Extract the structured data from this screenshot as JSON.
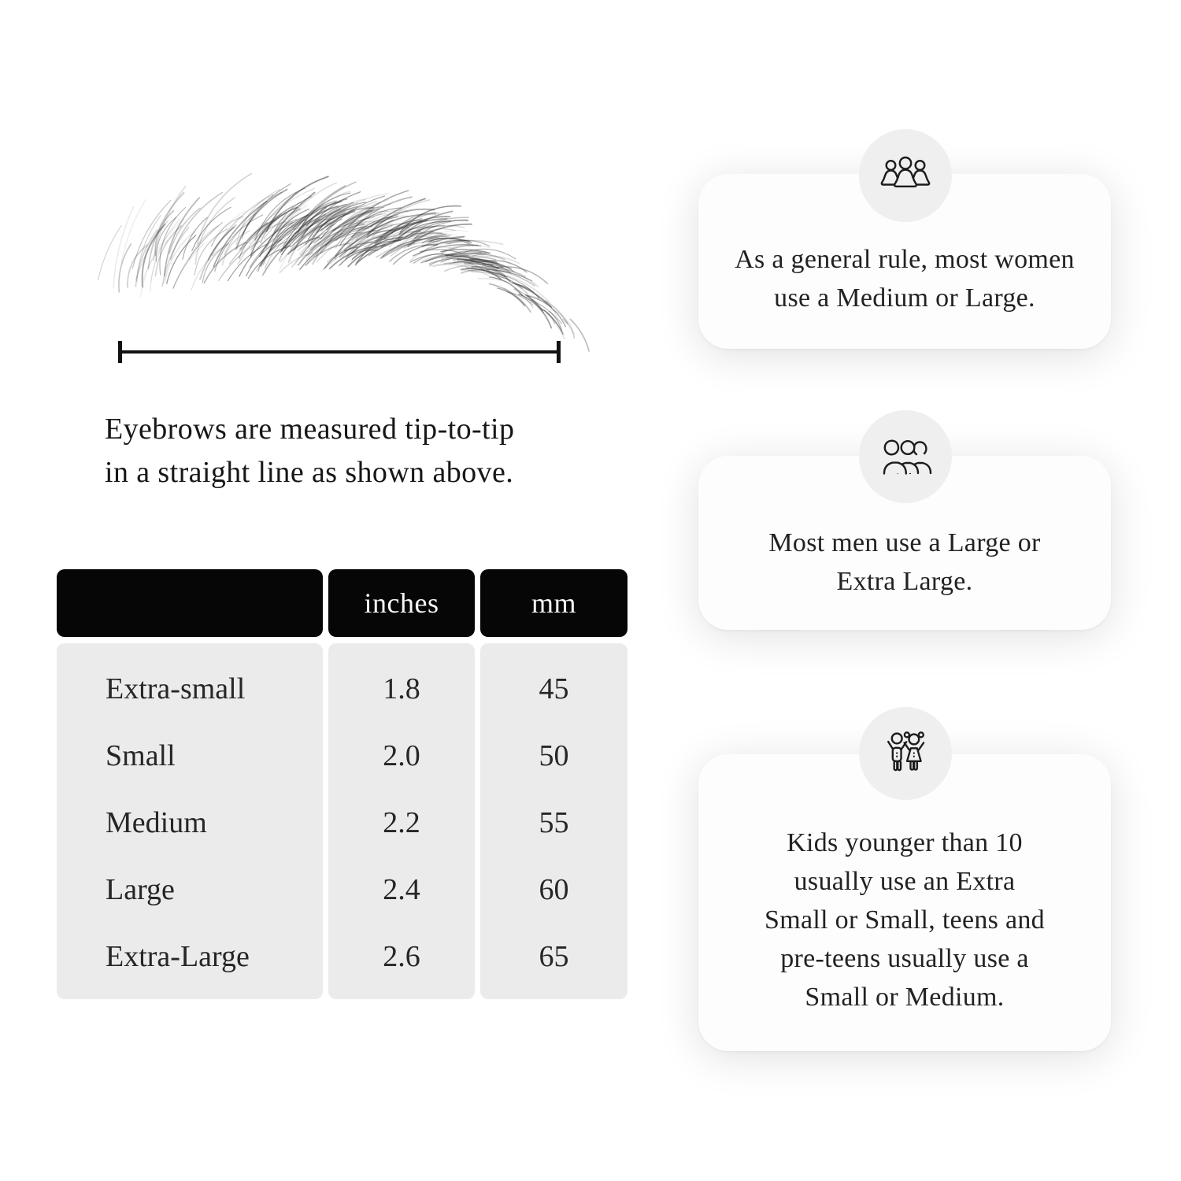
{
  "figure": {
    "eyebrow_image": "eyebrow-sketch",
    "measure_line_icon": "measurement-line",
    "caption_line1": "Eyebrows are measured tip-to-tip",
    "caption_line2": "in a straight line as shown above."
  },
  "size_table": {
    "headers": {
      "size": "",
      "inches": "inches",
      "mm": "mm"
    },
    "rows": [
      {
        "label": "Extra-small",
        "inches": "1.8",
        "mm": "45"
      },
      {
        "label": "Small",
        "inches": "2.0",
        "mm": "50"
      },
      {
        "label": "Medium",
        "inches": "2.2",
        "mm": "55"
      },
      {
        "label": "Large",
        "inches": "2.4",
        "mm": "60"
      },
      {
        "label": "Extra-Large",
        "inches": "2.6",
        "mm": "65"
      }
    ]
  },
  "cards": [
    {
      "icon": "women-group-icon",
      "lines": [
        "As a general rule, most women",
        "use a Medium or Large."
      ]
    },
    {
      "icon": "men-group-icon",
      "lines": [
        "Most men use a Large or",
        "Extra Large."
      ]
    },
    {
      "icon": "kids-icon",
      "lines": [
        "Kids younger than 10",
        "usually use an Extra",
        "Small or Small, teens and",
        "pre-teens usually use a",
        "Small or Medium."
      ]
    }
  ],
  "colors": {
    "table_header_bg": "#060606",
    "table_header_text": "#f7f7f7",
    "table_body_bg": "#ebebeb",
    "icon_circle_bg": "#efefef",
    "card_bg": "#fdfdfd",
    "line_color": "#121212",
    "text_color": "#1e1e1e"
  }
}
